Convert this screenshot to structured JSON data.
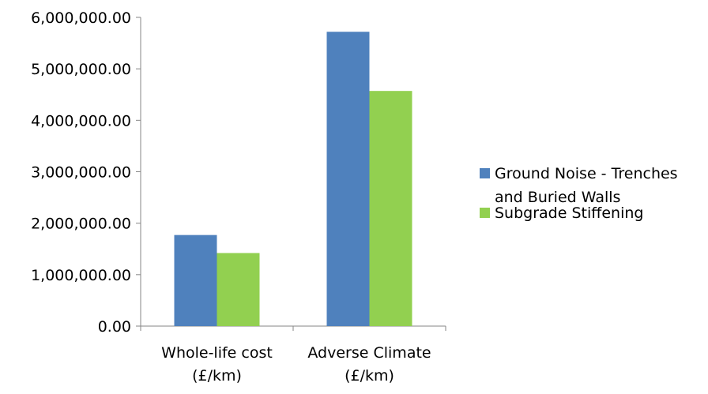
{
  "chart_data": {
    "type": "bar",
    "title": "",
    "xlabel": "",
    "ylabel": "",
    "categories": [
      [
        "Whole-life cost",
        "(£/km)"
      ],
      [
        "Adverse Climate",
        "(£/km)"
      ]
    ],
    "series": [
      {
        "name": [
          "Ground Noise - Trenches",
          "and Buried Walls"
        ],
        "color": "#4f81bd",
        "values": [
          1770000,
          5720000
        ]
      },
      {
        "name": [
          "Subgrade Stiffening"
        ],
        "color": "#92d050",
        "values": [
          1420000,
          4570000
        ]
      }
    ],
    "ylim": [
      0,
      6000000
    ],
    "yticks": [
      {
        "value": 0,
        "label": "0.00"
      },
      {
        "value": 1000000,
        "label": "1,000,000.00"
      },
      {
        "value": 2000000,
        "label": "2,000,000.00"
      },
      {
        "value": 3000000,
        "label": "3,000,000.00"
      },
      {
        "value": 4000000,
        "label": "4,000,000.00"
      },
      {
        "value": 5000000,
        "label": "5,000,000.00"
      },
      {
        "value": 6000000,
        "label": "6,000,000.00"
      }
    ],
    "grid": false,
    "legend_position": "right"
  }
}
